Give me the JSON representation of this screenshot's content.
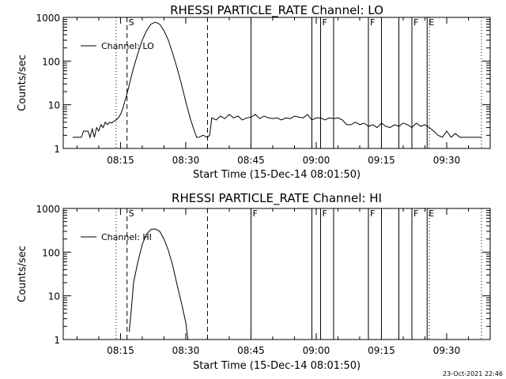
{
  "footer": {
    "timestamp": "23-Oct-2021 22:46"
  },
  "chart_data": [
    {
      "type": "line",
      "title": "RHESSI PARTICLE_RATE Channel: LO",
      "xlabel": "Start Time (15-Dec-14 08:01:50)",
      "ylabel": "Counts/sec",
      "yscale": "log",
      "ylim": [
        1,
        1000
      ],
      "xlim": [
        "08:01:50",
        "09:40:00"
      ],
      "xticks": [
        "08:15",
        "08:30",
        "08:45",
        "09:00",
        "09:15",
        "09:30"
      ],
      "yticks": [
        "1",
        "10",
        "100",
        "1000"
      ],
      "legend_location": "top-left",
      "series": [
        {
          "name": "Channel: LO",
          "x": [
            "08:04",
            "08:06",
            "08:06:30",
            "08:07",
            "08:07:30",
            "08:08",
            "08:08:30",
            "08:09",
            "08:09:30",
            "08:10",
            "08:10:30",
            "08:11",
            "08:11:30",
            "08:12",
            "08:12:30",
            "08:13",
            "08:13:30",
            "08:14",
            "08:14:30",
            "08:15",
            "08:15:30",
            "08:16",
            "08:16:30",
            "08:17",
            "08:17:30",
            "08:18",
            "08:19",
            "08:20",
            "08:21",
            "08:22",
            "08:23",
            "08:24",
            "08:25",
            "08:26",
            "08:27",
            "08:28",
            "08:29",
            "08:30",
            "08:31",
            "08:32",
            "08:32:30",
            "08:33",
            "08:34",
            "08:35",
            "08:35:30",
            "08:36",
            "08:37",
            "08:38",
            "08:39",
            "08:40",
            "08:41",
            "08:42",
            "08:43",
            "08:44",
            "08:45",
            "08:46",
            "08:47",
            "08:48",
            "08:49",
            "08:50",
            "08:51",
            "08:52",
            "08:53",
            "08:54",
            "08:55",
            "08:56",
            "08:57",
            "08:58",
            "08:59",
            "09:00",
            "09:01",
            "09:02",
            "09:03",
            "09:04",
            "09:05",
            "09:06",
            "09:07",
            "09:08",
            "09:09",
            "09:10",
            "09:11",
            "09:12",
            "09:13",
            "09:14",
            "09:15",
            "09:16",
            "09:17",
            "09:18",
            "09:19",
            "09:20",
            "09:21",
            "09:22",
            "09:23",
            "09:24",
            "09:25",
            "09:26",
            "09:27",
            "09:28",
            "09:29",
            "09:30",
            "09:31",
            "09:32",
            "09:33",
            "09:35",
            "09:38"
          ],
          "y": [
            1.8,
            1.8,
            2.5,
            2.5,
            2.5,
            1.8,
            2.8,
            1.8,
            3,
            2.5,
            3.5,
            3,
            4,
            3.5,
            4,
            3.8,
            4.2,
            4.5,
            5,
            6,
            8,
            12,
            18,
            28,
            45,
            70,
            150,
            300,
            500,
            700,
            780,
            700,
            500,
            300,
            150,
            70,
            30,
            12,
            5,
            2.5,
            1.8,
            1.8,
            2,
            1.8,
            2,
            5,
            4.5,
            5.5,
            4.8,
            6,
            5,
            5.5,
            4.5,
            5,
            5.2,
            6,
            4.8,
            5.5,
            5,
            4.8,
            5,
            4.5,
            5,
            4.8,
            5.5,
            5.2,
            5,
            6,
            4.5,
            5,
            5,
            4.5,
            5,
            4.8,
            5,
            4.5,
            3.5,
            3.5,
            4,
            3.5,
            3.8,
            3.2,
            3.5,
            3,
            3.8,
            3.2,
            3,
            3.5,
            3.2,
            3.8,
            3.5,
            3,
            3.8,
            3.2,
            3.5,
            3,
            2.5,
            2,
            1.8,
            2.5,
            1.8,
            2.2,
            1.8,
            1.8,
            1.8
          ]
        }
      ],
      "annotations": [
        {
          "label": "S",
          "x": "08:16:30",
          "style": "dashed"
        },
        {
          "label": "",
          "x": "08:35",
          "style": "dashed"
        },
        {
          "label": "",
          "x": "08:14",
          "style": "dotted"
        },
        {
          "label": "",
          "x": "09:26",
          "style": "dotted"
        },
        {
          "label": "",
          "x": "09:38",
          "style": "dotted"
        },
        {
          "label": "",
          "x": "08:45",
          "style": "solid"
        },
        {
          "label": "",
          "x": "08:59",
          "style": "solid"
        },
        {
          "label": "F",
          "x": "09:01",
          "style": "solid"
        },
        {
          "label": "",
          "x": "09:04",
          "style": "solid"
        },
        {
          "label": "F",
          "x": "09:12",
          "style": "solid"
        },
        {
          "label": "",
          "x": "09:15",
          "style": "solid"
        },
        {
          "label": "",
          "x": "09:19",
          "style": "solid"
        },
        {
          "label": "F",
          "x": "09:22",
          "style": "solid"
        },
        {
          "label": "E",
          "x": "09:25:30",
          "style": "solid"
        }
      ]
    },
    {
      "type": "line",
      "title": "RHESSI PARTICLE_RATE Channel: HI",
      "xlabel": "Start Time (15-Dec-14 08:01:50)",
      "ylabel": "Counts/sec",
      "yscale": "log",
      "ylim": [
        1,
        1000
      ],
      "xlim": [
        "08:01:50",
        "09:40:00"
      ],
      "xticks": [
        "08:15",
        "08:30",
        "08:45",
        "09:00",
        "09:15",
        "09:30"
      ],
      "yticks": [
        "1",
        "10",
        "100",
        "1000"
      ],
      "legend_location": "top-left",
      "series": [
        {
          "name": "Channel: HI",
          "x": [
            "08:17",
            "08:17:30",
            "08:18",
            "08:19",
            "08:20",
            "08:21",
            "08:22",
            "08:23",
            "08:24",
            "08:25",
            "08:26",
            "08:27",
            "08:28",
            "08:29",
            "08:30",
            "08:30:30"
          ],
          "y": [
            1.5,
            5,
            20,
            60,
            150,
            260,
            330,
            340,
            300,
            200,
            110,
            50,
            18,
            7,
            2.5,
            1
          ]
        }
      ],
      "annotations": [
        {
          "label": "S",
          "x": "08:16:30",
          "style": "dashed"
        },
        {
          "label": "",
          "x": "08:35",
          "style": "dashed"
        },
        {
          "label": "",
          "x": "08:14",
          "style": "dotted"
        },
        {
          "label": "",
          "x": "09:26",
          "style": "dotted"
        },
        {
          "label": "",
          "x": "09:38",
          "style": "dotted"
        },
        {
          "label": "F",
          "x": "08:45",
          "style": "solid"
        },
        {
          "label": "",
          "x": "08:59",
          "style": "solid"
        },
        {
          "label": "F",
          "x": "09:01",
          "style": "solid"
        },
        {
          "label": "",
          "x": "09:04",
          "style": "solid"
        },
        {
          "label": "F",
          "x": "09:12",
          "style": "solid"
        },
        {
          "label": "",
          "x": "09:15",
          "style": "solid"
        },
        {
          "label": "",
          "x": "09:19",
          "style": "solid"
        },
        {
          "label": "F",
          "x": "09:22",
          "style": "solid"
        },
        {
          "label": "E",
          "x": "09:25:30",
          "style": "solid"
        }
      ]
    }
  ]
}
